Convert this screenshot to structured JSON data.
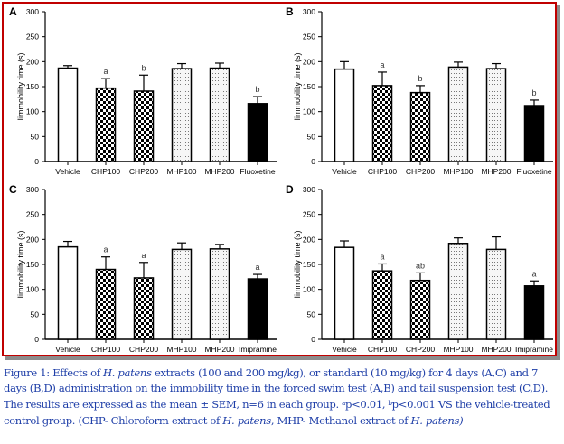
{
  "figure": {
    "caption": {
      "prefix": "Figure 1: Effects of ",
      "species1": "H. patens",
      "part2": " extracts (100 and 200 mg/kg), or standard (10 mg/kg) for 4 days (A,C) and 7 days (B,D) administration on the immobility time in the forced swim test (A,B) and tail suspension test (C,D). The results are expressed as the mean ± SEM, n=6 in each group. ",
      "sup_a": "a",
      "part3": "p<0.01, ",
      "sup_b": "b",
      "part4": "p<0.001 VS the vehicle-treated control group. (CHP- Chloroform extract of ",
      "species2": "H. patens",
      "part5": ", MHP-  Methanol extract of ",
      "species3": "H. patens)"
    },
    "colors": {
      "frame": "#c00000",
      "shadow": "#8c8c8c",
      "caption": "#1f3fa8",
      "annotation": "#333333"
    }
  },
  "chart_data": [
    {
      "panel": "A",
      "type": "bar",
      "ylabel": "Iimmobility time (s)",
      "ylim": [
        0,
        300
      ],
      "yticks": [
        0,
        50,
        100,
        150,
        200,
        250,
        300
      ],
      "categories": [
        "Vehicle",
        "CHP100",
        "CHP200",
        "MHP100",
        "MHP200",
        "Fluoxetine"
      ],
      "values": [
        187,
        147,
        141,
        186,
        187,
        116
      ],
      "errors": [
        5,
        19,
        32,
        10,
        10,
        14
      ],
      "patterns": [
        "white",
        "checker",
        "checker",
        "dots",
        "dots",
        "black"
      ],
      "annotations": [
        "",
        "a",
        "b",
        "",
        "",
        "b"
      ]
    },
    {
      "panel": "B",
      "type": "bar",
      "ylabel": "Iimmobility time (s)",
      "ylim": [
        0,
        300
      ],
      "yticks": [
        0,
        50,
        100,
        150,
        200,
        250,
        300
      ],
      "categories": [
        "Vehicle",
        "CHP100",
        "CHP200",
        "MHP100",
        "MHP200",
        "Fluoxetine"
      ],
      "values": [
        185,
        152,
        138,
        189,
        186,
        112
      ],
      "errors": [
        15,
        27,
        14,
        10,
        10,
        11
      ],
      "patterns": [
        "white",
        "checker",
        "checker",
        "dots",
        "dots",
        "black"
      ],
      "annotations": [
        "",
        "a",
        "b",
        "",
        "",
        "b"
      ]
    },
    {
      "panel": "C",
      "type": "bar",
      "ylabel": "Iimmobility time (s)",
      "ylim": [
        0,
        300
      ],
      "yticks": [
        0,
        50,
        100,
        150,
        200,
        250,
        300
      ],
      "categories": [
        "Vehicle",
        "CHP100",
        "CHP200",
        "MHP100",
        "MHP200",
        "Imipramine"
      ],
      "values": [
        185,
        140,
        123,
        180,
        181,
        121
      ],
      "errors": [
        11,
        25,
        31,
        13,
        9,
        9
      ],
      "patterns": [
        "white",
        "checker",
        "checker",
        "dots",
        "dots",
        "black"
      ],
      "annotations": [
        "",
        "a",
        "a",
        "",
        "",
        "a"
      ]
    },
    {
      "panel": "D",
      "type": "bar",
      "ylabel": "Iimmobility time (s)",
      "ylim": [
        0,
        300
      ],
      "yticks": [
        0,
        50,
        100,
        150,
        200,
        250,
        300
      ],
      "categories": [
        "Vehicle",
        "CHP100",
        "CHP200",
        "MHP100",
        "MHP200",
        "Imipramine"
      ],
      "values": [
        184,
        137,
        118,
        192,
        180,
        107
      ],
      "errors": [
        13,
        14,
        15,
        11,
        25,
        10
      ],
      "patterns": [
        "white",
        "checker",
        "checker",
        "dots",
        "dots",
        "black"
      ],
      "annotations": [
        "",
        "a",
        "ab",
        "",
        "",
        "a"
      ]
    }
  ]
}
